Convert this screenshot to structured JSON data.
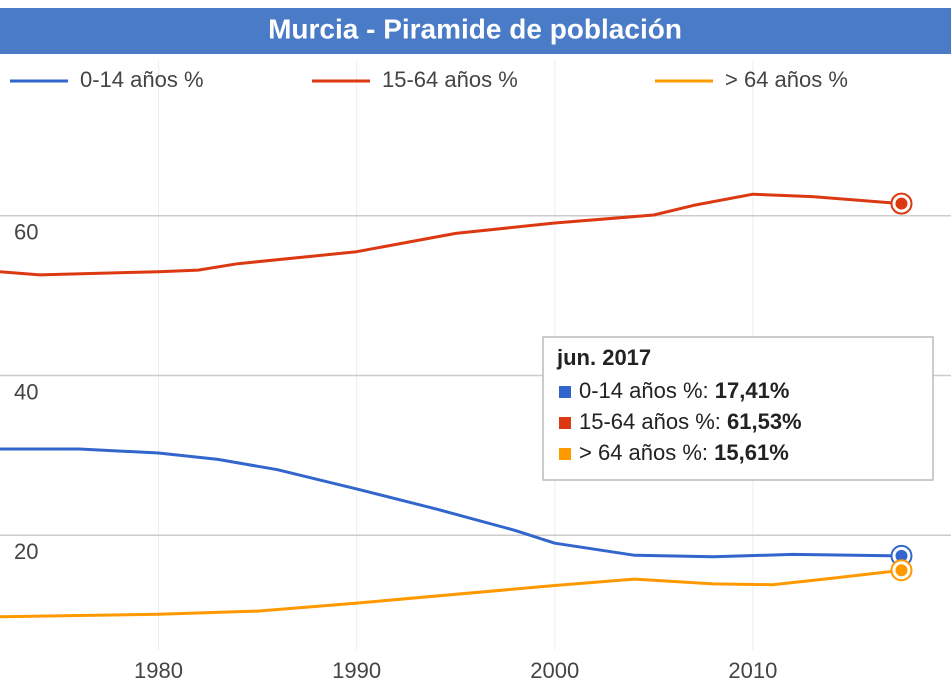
{
  "chart_data": {
    "type": "line",
    "title": "Murcia - Piramide de población",
    "series": [
      {
        "name": "0-14 años %",
        "color": "#3366cc",
        "x": [
          1972,
          1976,
          1980,
          1983,
          1986,
          1990,
          1994,
          1998,
          2000,
          2004,
          2008,
          2012,
          2017.5
        ],
        "values": [
          30.8,
          30.8,
          30.3,
          29.5,
          28.2,
          25.8,
          23.3,
          20.6,
          19.0,
          17.5,
          17.3,
          17.6,
          17.41
        ]
      },
      {
        "name": "15-64 años %",
        "color": "#dc3912",
        "x": [
          1972,
          1974,
          1980,
          1982,
          1984,
          1988,
          1990,
          1995,
          2000,
          2005,
          2007,
          2010,
          2013,
          2017.5
        ],
        "values": [
          53.0,
          52.6,
          53.0,
          53.2,
          54.0,
          55.0,
          55.5,
          57.8,
          59.1,
          60.1,
          61.3,
          62.7,
          62.4,
          61.53
        ]
      },
      {
        "name": "> 64 años %",
        "color": "#ff9900",
        "x": [
          1972,
          1980,
          1985,
          1990,
          2000,
          2004,
          2008,
          2011,
          2014,
          2017.5
        ],
        "values": [
          9.8,
          10.1,
          10.5,
          11.5,
          13.7,
          14.5,
          13.9,
          13.8,
          14.6,
          15.61
        ]
      }
    ],
    "xlim": [
      1972,
      2020
    ],
    "xticks": [
      1980,
      1990,
      2000,
      2010
    ],
    "ylim": [
      5,
      75
    ],
    "yticks": [
      20,
      40,
      60
    ],
    "grid": true,
    "tooltip": {
      "title": "jun. 2017",
      "items": [
        {
          "label": "0-14 años %:",
          "value": "17,41%"
        },
        {
          "label": "15-64 años %:",
          "value": "61,53%"
        },
        {
          "label": "> 64 años %:",
          "value": "15,61%"
        }
      ]
    }
  }
}
